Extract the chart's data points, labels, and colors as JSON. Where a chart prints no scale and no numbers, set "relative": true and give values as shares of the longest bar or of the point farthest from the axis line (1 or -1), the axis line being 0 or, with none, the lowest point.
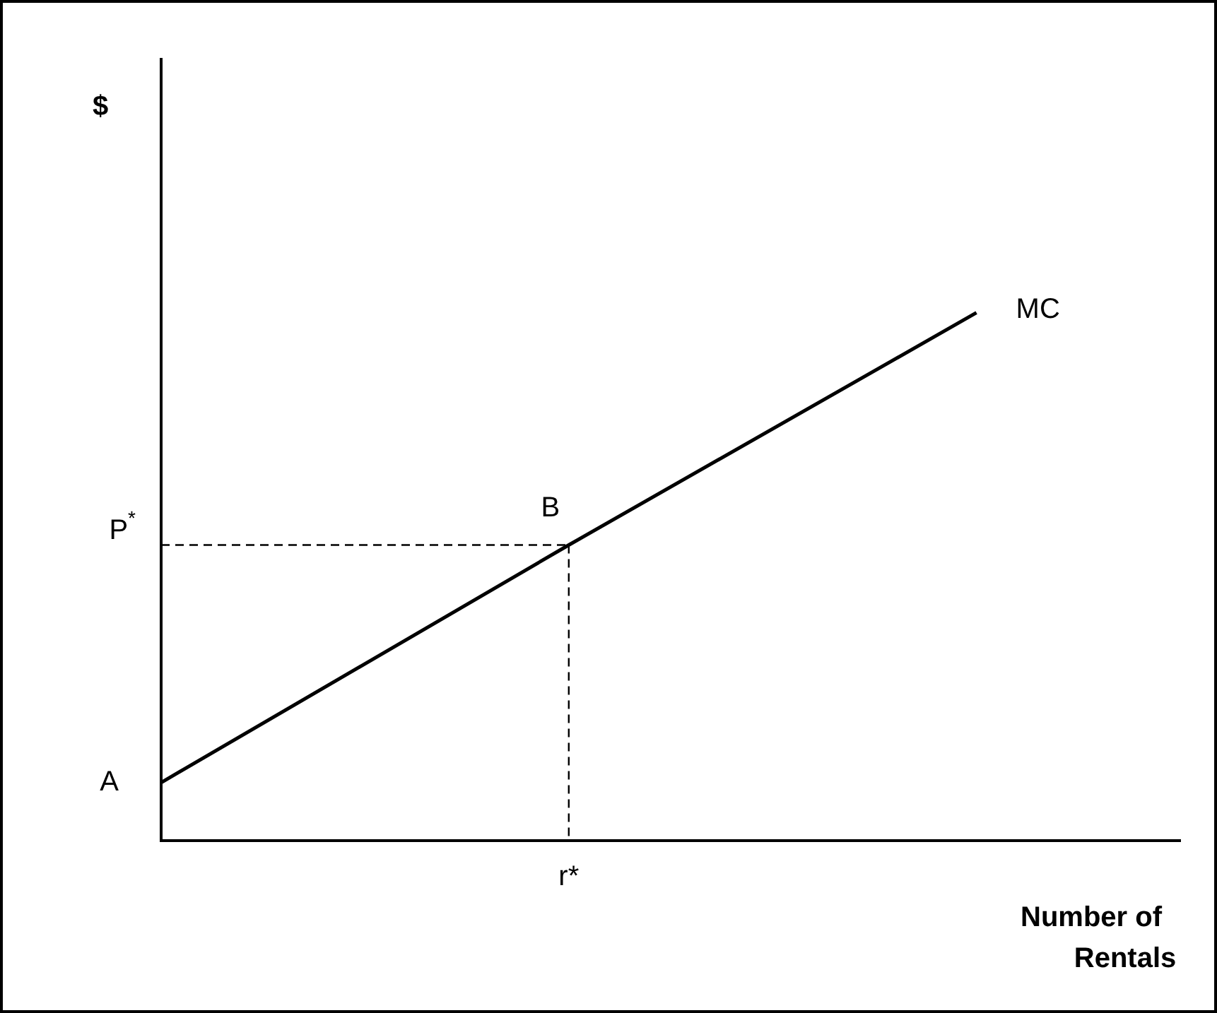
{
  "chart_data": {
    "type": "line",
    "relative": true,
    "xlabel": "Number of Rentals",
    "categories": [
      null,
      null,
      null
    ],
    "series": [
      {
        "name": "MC",
        "color": "#000000",
        "values": [
          0.11,
          0.56,
          1
        ]
      }
    ],
    "ref_lines": [
      {
        "axis": "y",
        "value": 0.56,
        "label": "P$^{*}$",
        "line_style": "dashed",
        "color": "#000000"
      }
    ],
    "annotations": [
      "$",
      "A",
      {
        "text": "B",
        "y": 0.56
      },
      "r*"
    ],
    "grid": false,
    "legend": false,
    "marker": "none",
    "line_style": "solid"
  }
}
